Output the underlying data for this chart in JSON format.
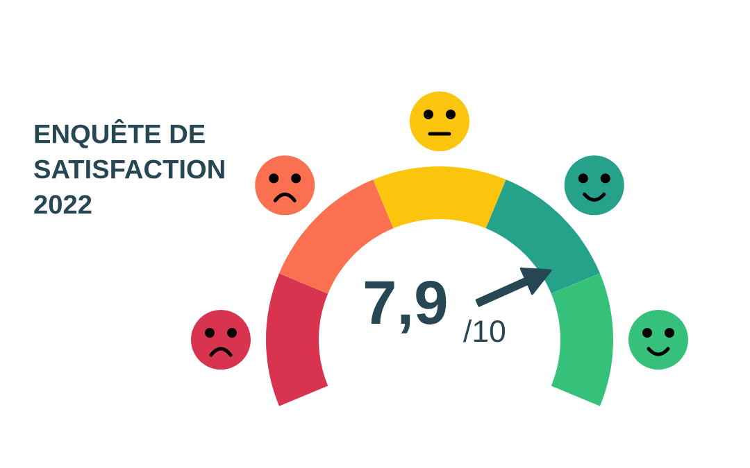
{
  "chart_data": {
    "type": "donut",
    "title": "ENQUÊTE DE\nSATISFACTION\n2022",
    "categories": [
      null,
      null,
      null,
      null,
      null
    ],
    "values": [
      20,
      20,
      20,
      20,
      20
    ],
    "colors": [
      "#d9344f",
      "#fa7050",
      "#fbc50d",
      "#26a28b",
      "#36c17a"
    ],
    "annotations": [
      "7,9",
      "/10"
    ]
  }
}
